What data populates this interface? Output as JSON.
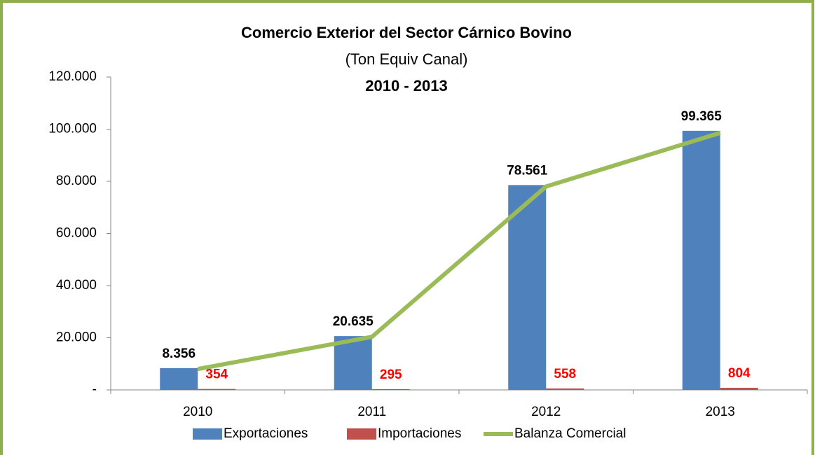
{
  "chart_data": {
    "type": "bar",
    "title": "Comercio Exterior del Sector Cárnico Bovino",
    "subtitle": "(Ton Equiv Canal)",
    "period": "2010 - 2013",
    "categories": [
      "2010",
      "2011",
      "2012",
      "2013"
    ],
    "series": [
      {
        "name": "Exportaciones",
        "color": "#4f81bd",
        "type": "bar",
        "values": [
          8356,
          20635,
          78561,
          99365
        ],
        "value_labels": [
          "8.356",
          "20.635",
          "78.561",
          "99.365"
        ],
        "label_color": "#000000"
      },
      {
        "name": "Importaciones",
        "color": "#c0504d",
        "type": "bar",
        "values": [
          354,
          295,
          558,
          804
        ],
        "label_color": "#ff0000"
      },
      {
        "name": "Balanza Comercial",
        "color": "#9bbb59",
        "type": "line",
        "values": [
          8002,
          20340,
          78003,
          98561
        ]
      }
    ],
    "ylim": [
      0,
      120000
    ],
    "yticks": [
      {
        "value": 0,
        "label": "-"
      },
      {
        "value": 20000,
        "label": "20.000"
      },
      {
        "value": 40000,
        "label": "40.000"
      },
      {
        "value": 60000,
        "label": "60.000"
      },
      {
        "value": 80000,
        "label": "80.000"
      },
      {
        "value": 100000,
        "label": "100.000"
      },
      {
        "value": 120000,
        "label": "120.000"
      }
    ],
    "grid": false,
    "legend": "bottom"
  }
}
